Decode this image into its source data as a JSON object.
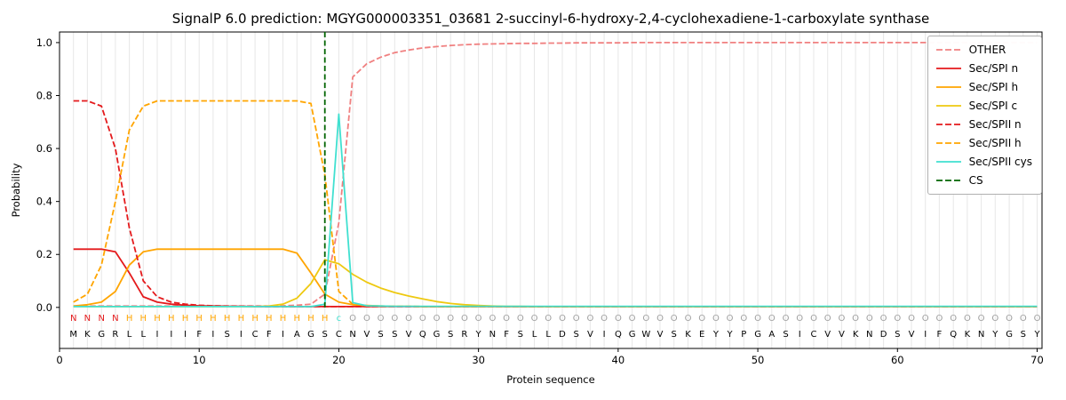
{
  "chart_data": {
    "type": "line",
    "title": "SignalP 6.0 prediction: MGYG000003351_03681 2-succinyl-6-hydroxy-2,4-cyclohexadiene-1-carboxylate synthase",
    "xlabel": "Protein sequence",
    "ylabel": "Probability",
    "xlim": [
      0,
      70.35
    ],
    "ylim": [
      -0.155,
      1.04
    ],
    "grid": "vertical line at every residue position",
    "grid_color": "#e7e7e7",
    "legend_position": "upper right",
    "x": [
      1,
      2,
      3,
      4,
      5,
      6,
      7,
      8,
      9,
      10,
      11,
      12,
      13,
      14,
      15,
      16,
      17,
      18,
      19,
      20,
      21,
      22,
      23,
      24,
      25,
      26,
      27,
      28,
      29,
      30,
      31,
      32,
      33,
      34,
      35,
      36,
      37,
      38,
      39,
      40,
      41,
      42,
      43,
      44,
      45,
      46,
      47,
      48,
      49,
      50,
      51,
      52,
      53,
      54,
      55,
      56,
      57,
      58,
      59,
      60,
      61,
      62,
      63,
      64,
      65,
      66,
      67,
      68,
      69,
      70
    ],
    "series": [
      {
        "name": "OTHER",
        "color": "#f08080",
        "dashed": true,
        "values": [
          0.005,
          0.005,
          0.005,
          0.005,
          0.005,
          0.005,
          0.005,
          0.005,
          0.005,
          0.005,
          0.005,
          0.005,
          0.005,
          0.005,
          0.005,
          0.006,
          0.008,
          0.012,
          0.05,
          0.32,
          0.87,
          0.92,
          0.945,
          0.962,
          0.972,
          0.98,
          0.985,
          0.989,
          0.992,
          0.994,
          0.995,
          0.996,
          0.997,
          0.997,
          0.998,
          0.998,
          0.999,
          0.999,
          0.999,
          0.999,
          1.0,
          1.0,
          1.0,
          1.0,
          1.0,
          1.0,
          1.0,
          1.0,
          1.0,
          1.0,
          1.0,
          1.0,
          1.0,
          1.0,
          1.0,
          1.0,
          1.0,
          1.0,
          1.0,
          1.0,
          1.0,
          1.0,
          1.0,
          1.0,
          1.0,
          1.0,
          1.0,
          1.0,
          1.0,
          1.0
        ]
      },
      {
        "name": "Sec/SPI n",
        "color": "#e41a1c",
        "dashed": false,
        "values": [
          0.22,
          0.22,
          0.22,
          0.21,
          0.13,
          0.04,
          0.02,
          0.012,
          0.008,
          0.006,
          0.005,
          0.004,
          0.004,
          0.003,
          0.003,
          0.003,
          0.003,
          0.003,
          0.003,
          0.003,
          0.003,
          0.003,
          0.003,
          0.003,
          0.003,
          0.003,
          0.003,
          0.003,
          0.003,
          0.003,
          0.003,
          0.003,
          0.003,
          0.003,
          0.003,
          0.003,
          0.003,
          0.003,
          0.003,
          0.003,
          0.003,
          0.003,
          0.003,
          0.003,
          0.003,
          0.003,
          0.003,
          0.003,
          0.003,
          0.003,
          0.003,
          0.003,
          0.003,
          0.003,
          0.003,
          0.003,
          0.003,
          0.003,
          0.003,
          0.003,
          0.003,
          0.003,
          0.003,
          0.003,
          0.003,
          0.003,
          0.003,
          0.003,
          0.003,
          0.003
        ]
      },
      {
        "name": "Sec/SPI h",
        "color": "#ffa500",
        "dashed": false,
        "values": [
          0.005,
          0.01,
          0.02,
          0.06,
          0.16,
          0.21,
          0.22,
          0.22,
          0.22,
          0.22,
          0.22,
          0.22,
          0.22,
          0.22,
          0.22,
          0.22,
          0.205,
          0.13,
          0.05,
          0.02,
          0.01,
          0.007,
          0.005,
          0.004,
          0.004,
          0.003,
          0.003,
          0.003,
          0.003,
          0.003,
          0.003,
          0.003,
          0.003,
          0.003,
          0.003,
          0.003,
          0.003,
          0.003,
          0.003,
          0.003,
          0.003,
          0.003,
          0.003,
          0.003,
          0.003,
          0.003,
          0.003,
          0.003,
          0.003,
          0.003,
          0.003,
          0.003,
          0.003,
          0.003,
          0.003,
          0.003,
          0.003,
          0.003,
          0.003,
          0.003,
          0.003,
          0.003,
          0.003,
          0.003,
          0.003,
          0.003,
          0.003,
          0.003,
          0.003,
          0.003
        ]
      },
      {
        "name": "Sec/SPI c",
        "color": "#eec911",
        "dashed": false,
        "values": [
          0.003,
          0.003,
          0.003,
          0.003,
          0.003,
          0.003,
          0.003,
          0.003,
          0.003,
          0.003,
          0.003,
          0.003,
          0.003,
          0.003,
          0.005,
          0.012,
          0.035,
          0.09,
          0.18,
          0.165,
          0.125,
          0.095,
          0.073,
          0.056,
          0.043,
          0.032,
          0.022,
          0.015,
          0.01,
          0.007,
          0.005,
          0.004,
          0.004,
          0.003,
          0.003,
          0.003,
          0.003,
          0.003,
          0.003,
          0.003,
          0.003,
          0.003,
          0.003,
          0.003,
          0.003,
          0.003,
          0.003,
          0.003,
          0.003,
          0.003,
          0.003,
          0.003,
          0.003,
          0.003,
          0.003,
          0.003,
          0.003,
          0.003,
          0.003,
          0.003,
          0.003,
          0.003,
          0.003,
          0.003,
          0.003,
          0.003,
          0.003,
          0.003,
          0.003,
          0.003
        ]
      },
      {
        "name": "Sec/SPII n",
        "color": "#e41a1c",
        "dashed": true,
        "values": [
          0.78,
          0.78,
          0.76,
          0.6,
          0.3,
          0.1,
          0.04,
          0.02,
          0.012,
          0.008,
          0.006,
          0.005,
          0.004,
          0.004,
          0.003,
          0.003,
          0.003,
          0.003,
          0.003,
          0.003,
          0.003,
          0.003,
          0.003,
          0.003,
          0.003,
          0.003,
          0.003,
          0.003,
          0.003,
          0.003,
          0.003,
          0.003,
          0.003,
          0.003,
          0.003,
          0.003,
          0.003,
          0.003,
          0.003,
          0.003,
          0.003,
          0.003,
          0.003,
          0.003,
          0.003,
          0.003,
          0.003,
          0.003,
          0.003,
          0.003,
          0.003,
          0.003,
          0.003,
          0.003,
          0.003,
          0.003,
          0.003,
          0.003,
          0.003,
          0.003,
          0.003,
          0.003,
          0.003,
          0.003,
          0.003,
          0.003,
          0.003,
          0.003,
          0.003,
          0.003
        ]
      },
      {
        "name": "Sec/SPII h",
        "color": "#ffa500",
        "dashed": true,
        "values": [
          0.02,
          0.05,
          0.16,
          0.4,
          0.67,
          0.76,
          0.78,
          0.78,
          0.78,
          0.78,
          0.78,
          0.78,
          0.78,
          0.78,
          0.78,
          0.78,
          0.78,
          0.77,
          0.5,
          0.06,
          0.012,
          0.006,
          0.005,
          0.004,
          0.004,
          0.003,
          0.003,
          0.003,
          0.003,
          0.003,
          0.003,
          0.003,
          0.003,
          0.003,
          0.003,
          0.003,
          0.003,
          0.003,
          0.003,
          0.003,
          0.003,
          0.003,
          0.003,
          0.003,
          0.003,
          0.003,
          0.003,
          0.003,
          0.003,
          0.003,
          0.003,
          0.003,
          0.003,
          0.003,
          0.003,
          0.003,
          0.003,
          0.003,
          0.003,
          0.003,
          0.003,
          0.003,
          0.003,
          0.003,
          0.003,
          0.003,
          0.003,
          0.003,
          0.003,
          0.003
        ]
      },
      {
        "name": "Sec/SPII cys",
        "color": "#40e0d0",
        "dashed": false,
        "values": [
          0.003,
          0.003,
          0.003,
          0.003,
          0.003,
          0.003,
          0.003,
          0.003,
          0.003,
          0.003,
          0.003,
          0.003,
          0.003,
          0.003,
          0.003,
          0.003,
          0.003,
          0.003,
          0.012,
          0.73,
          0.018,
          0.006,
          0.005,
          0.004,
          0.004,
          0.004,
          0.004,
          0.004,
          0.004,
          0.004,
          0.004,
          0.004,
          0.004,
          0.004,
          0.004,
          0.004,
          0.004,
          0.004,
          0.004,
          0.004,
          0.004,
          0.004,
          0.004,
          0.004,
          0.004,
          0.004,
          0.004,
          0.004,
          0.004,
          0.004,
          0.004,
          0.004,
          0.004,
          0.004,
          0.004,
          0.004,
          0.004,
          0.004,
          0.004,
          0.004,
          0.004,
          0.004,
          0.004,
          0.004,
          0.004,
          0.004,
          0.004,
          0.004,
          0.004,
          0.004
        ]
      }
    ],
    "cs_line": {
      "x": 19,
      "color": "#006400",
      "label": "CS",
      "dashed": true
    }
  },
  "axes": {
    "xticks": [
      0,
      10,
      20,
      30,
      40,
      50,
      60,
      70
    ],
    "yticks": [
      "0.0",
      "0.2",
      "0.4",
      "0.6",
      "0.8",
      "1.0"
    ]
  },
  "sequence": {
    "residues": "MKGRLLIIIFISICFIAGSCNVSSVQGSRYNFSLLDSVIQGWVSKEYYPGASICVVKNDSVIFQKNYGSY",
    "annotation": "NNNNHHHHHHHHHHHHHHHcOOOOOOOOOOOOOOOOOOOOOOOOOOOOOOOOOOOOOOOOOOOOOOOOOO",
    "annotation_colors": {
      "N": "#e41a1c",
      "H": "#ffa500",
      "c": "#40e0d0",
      "O": "#a0a0a0"
    },
    "residue_color": "#000000"
  }
}
